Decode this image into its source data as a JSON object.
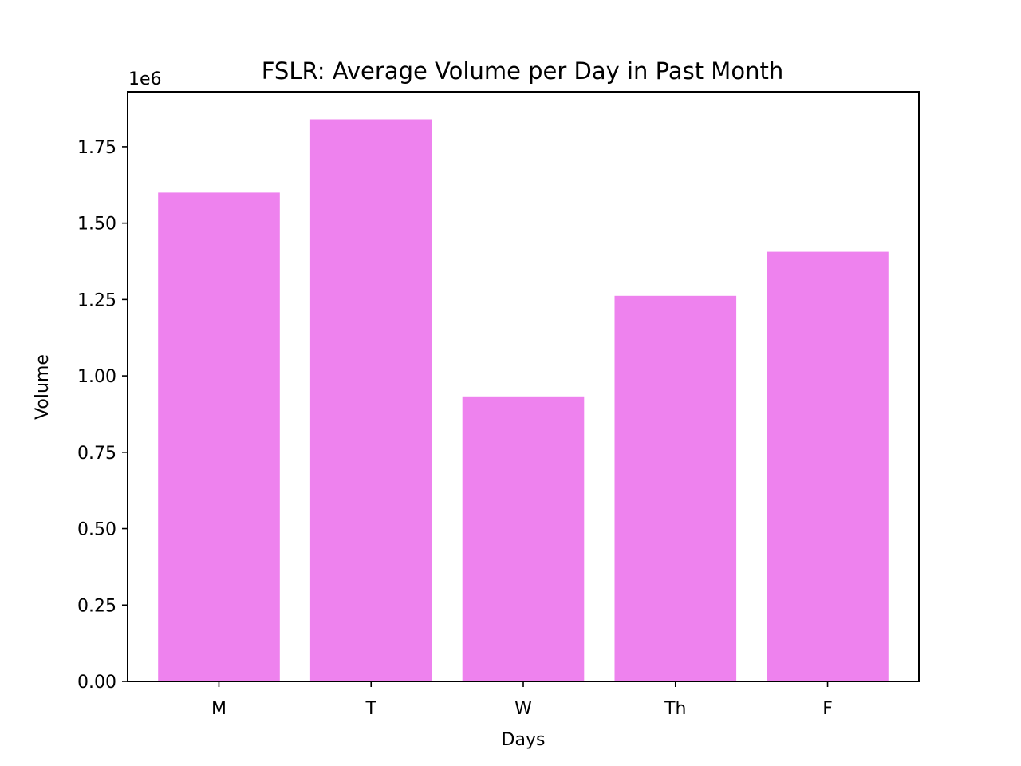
{
  "chart_data": {
    "type": "bar",
    "title": "FSLR: Average Volume per Day in Past Month",
    "xlabel": "Days",
    "ylabel": "Volume",
    "y_offset_label": "1e6",
    "categories": [
      "M",
      "T",
      "W",
      "Th",
      "F"
    ],
    "values": [
      1600000,
      1840000,
      933000,
      1262000,
      1406000
    ],
    "ylim": [
      0,
      1930000
    ],
    "yticks": [
      0,
      250000,
      500000,
      750000,
      1000000,
      1250000,
      1500000,
      1750000
    ],
    "ytick_labels": [
      "0.00",
      "0.25",
      "0.50",
      "0.75",
      "1.00",
      "1.25",
      "1.50",
      "1.75"
    ],
    "bar_color": "#ee82ee",
    "grid": false,
    "legend": "none"
  }
}
